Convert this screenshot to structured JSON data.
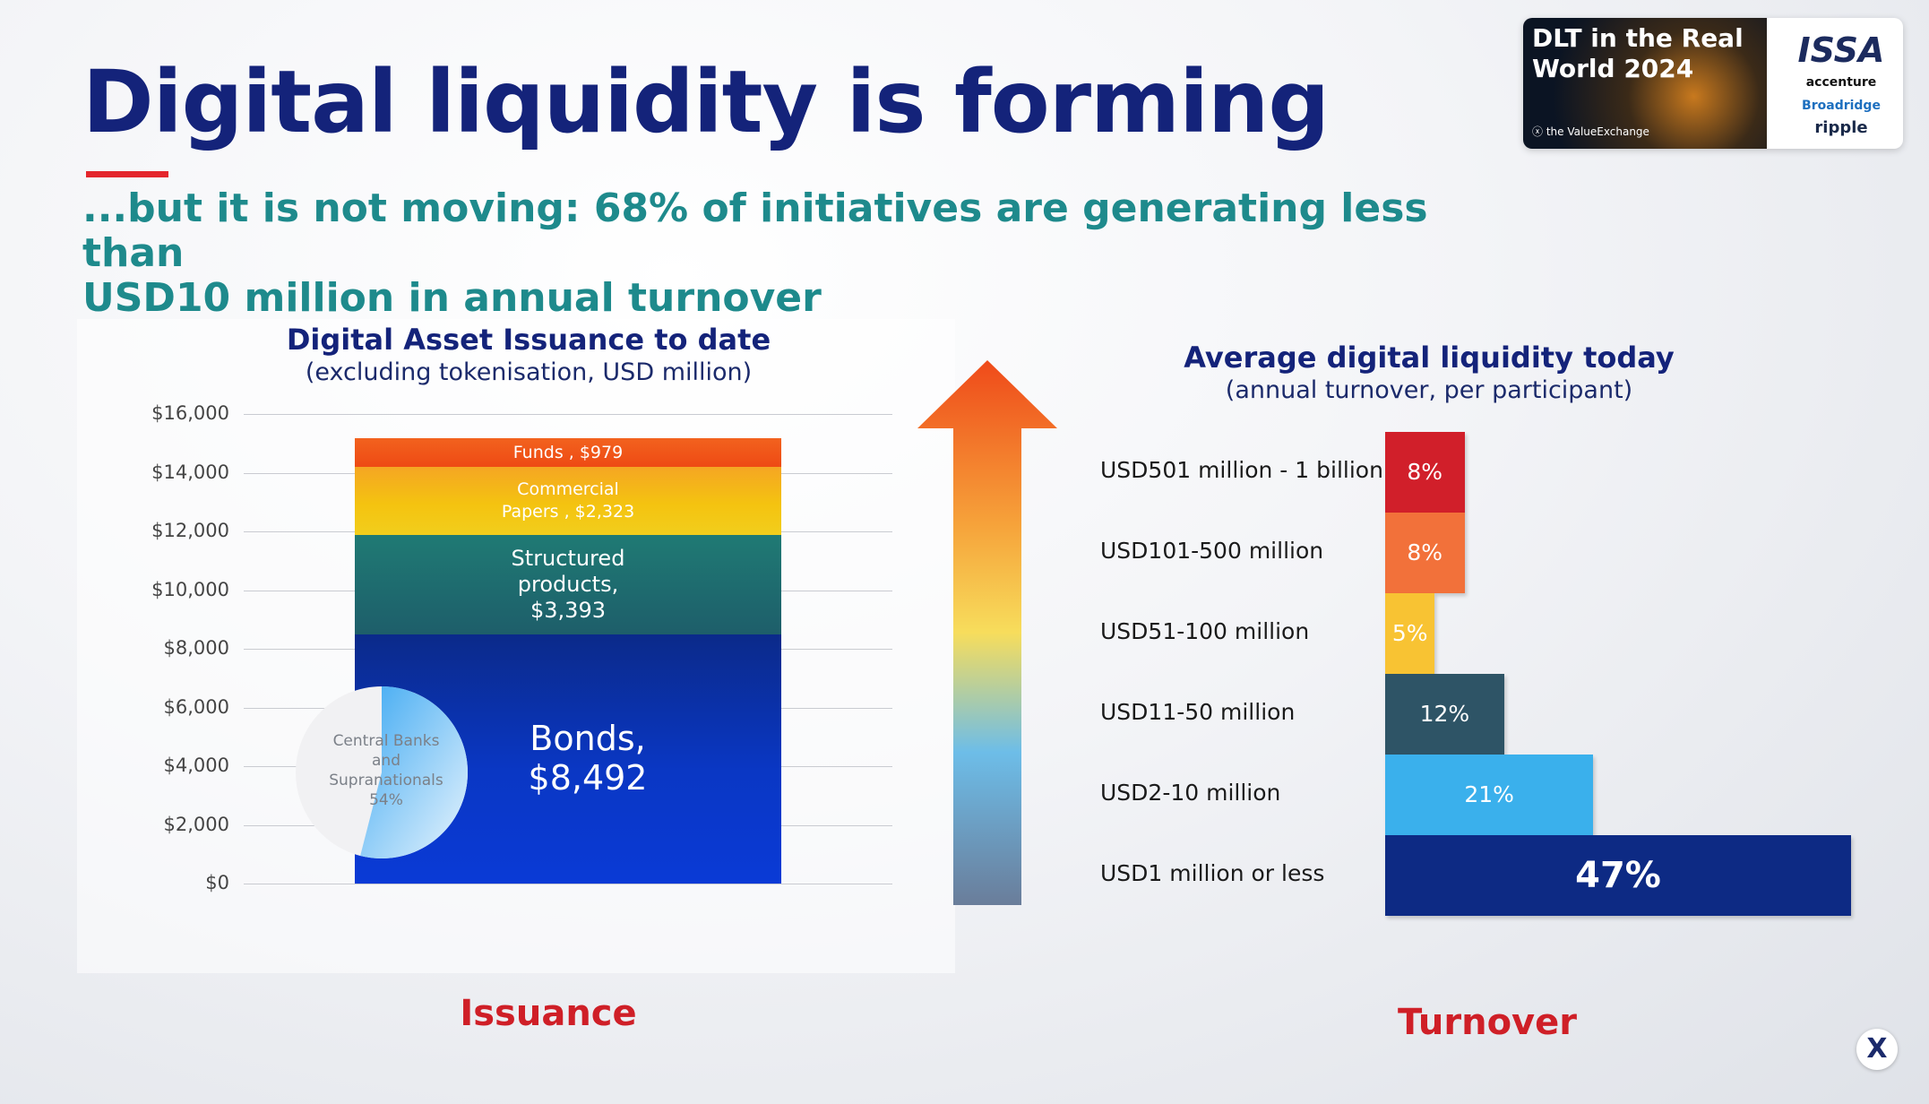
{
  "slide": {
    "title": "Digital liquidity is forming",
    "subtitle_line1": "...but it is not moving: 68% of initiatives are generating less than",
    "subtitle_line2": "USD10 million in annual turnover"
  },
  "badge": {
    "title_line1": "DLT in the Real",
    "title_line2": "World 2024",
    "source": "the ValueExchange",
    "partners": [
      "ISSA",
      "accenture",
      "Broadridge",
      "ripple"
    ]
  },
  "colors": {
    "title": "#14237a",
    "accent_red": "#e4262c",
    "subtitle_teal": "#1e8a8c",
    "funds": "#f05a1c",
    "commercial_papers": "#f2c40f",
    "structured_products": "#1e6a6e",
    "bonds": "#0a2fb0"
  },
  "chart_data": [
    {
      "type": "bar",
      "stacked": true,
      "title": "Digital Asset Issuance to date",
      "subtitle": "(excluding tokenisation, USD million)",
      "ylim": [
        0,
        16000
      ],
      "yticks": [
        "$0",
        "$2,000",
        "$4,000",
        "$6,000",
        "$8,000",
        "$10,000",
        "$12,000",
        "$14,000",
        "$16,000"
      ],
      "grid": true,
      "series": [
        {
          "name": "Bonds",
          "value": 8492,
          "label_line1": "Bonds,",
          "label_line2": "$8,492"
        },
        {
          "name": "Structured products",
          "value": 3393,
          "label_line1": "Structured",
          "label_line2": "products,",
          "label_line3": "$3,393"
        },
        {
          "name": "Commercial Papers",
          "value": 2323,
          "label_line1": "Commercial",
          "label_line2": "Papers , $2,323"
        },
        {
          "name": "Funds",
          "value": 979,
          "label": "Funds , $979"
        }
      ],
      "inset_pie": {
        "label_line1": "Central Banks",
        "label_line2": "and",
        "label_line3": "Supranationals",
        "label_line4": "54%",
        "value": 54
      },
      "footer": "Issuance"
    },
    {
      "type": "bar",
      "orientation": "horizontal",
      "title": "Average digital liquidity today",
      "subtitle": "(annual turnover, per participant)",
      "categories": [
        "USD501 million - 1 billion",
        "USD101-500 million",
        "USD51-100 million",
        "USD11-50 million",
        "USD2-10 million",
        "USD1 million or less"
      ],
      "values": [
        8,
        8,
        5,
        12,
        21,
        47
      ],
      "value_labels": [
        "8%",
        "8%",
        "5%",
        "12%",
        "21%",
        "47%"
      ],
      "bar_colors": [
        "#d11f2a",
        "#f2713a",
        "#f8c333",
        "#2e5466",
        "#3ab0ec",
        "#0d2a84"
      ],
      "footer": "Turnover"
    }
  ]
}
